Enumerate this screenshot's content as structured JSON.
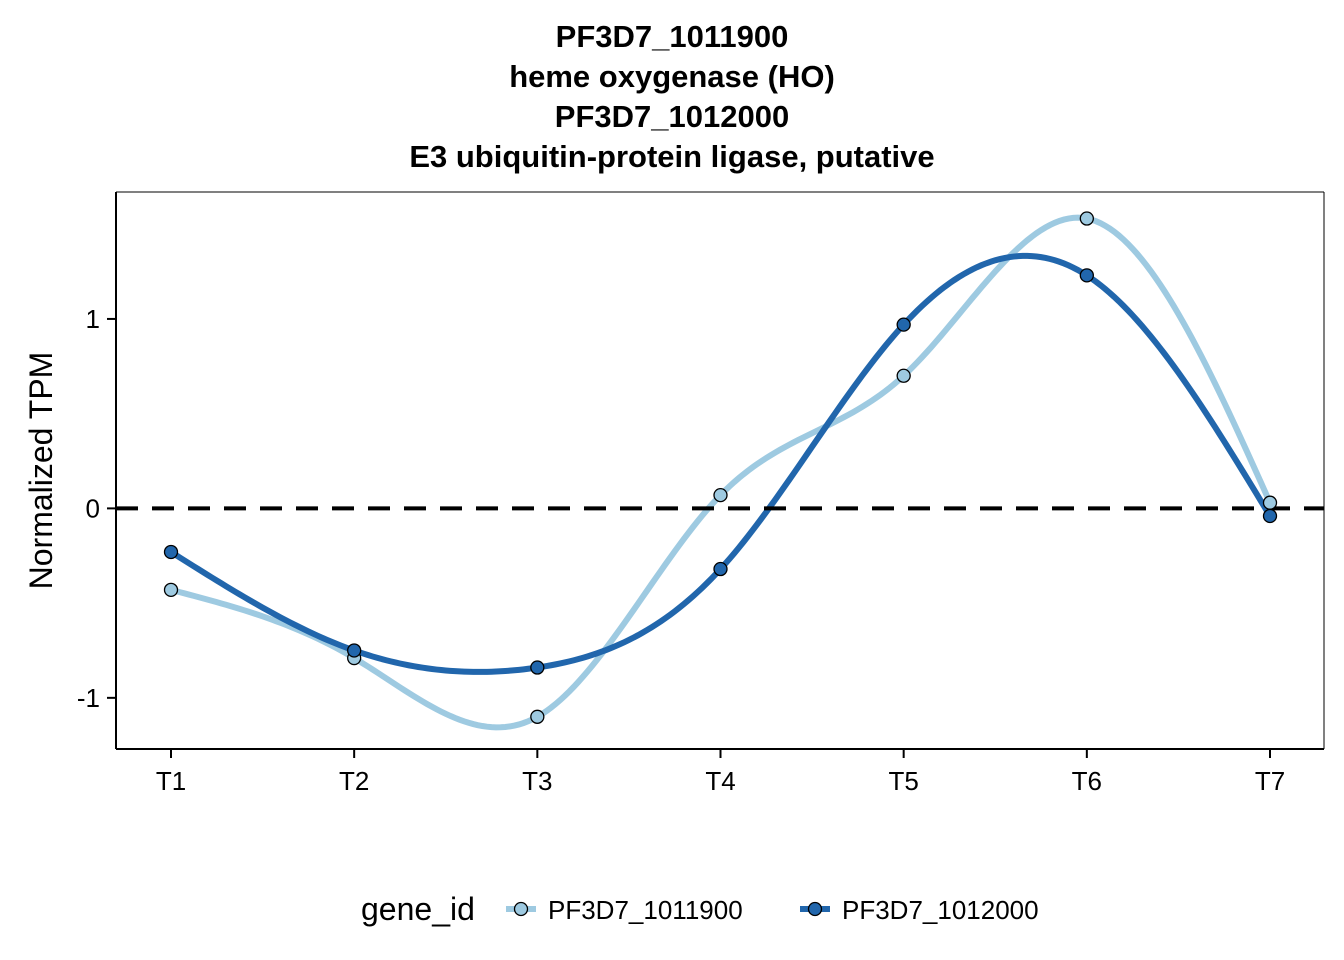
{
  "chart_data": {
    "type": "line",
    "title_lines": [
      "PF3D7_1011900",
      "heme oxygenase (HO)",
      "PF3D7_1012000",
      "E3 ubiquitin-protein ligase, putative"
    ],
    "xlabel": "",
    "ylabel": "Normalized TPM",
    "categories": [
      "T1",
      "T2",
      "T3",
      "T4",
      "T5",
      "T6",
      "T7"
    ],
    "yticks": [
      -1,
      0,
      1
    ],
    "ylim": [
      -1.27,
      1.67
    ],
    "reference_line": {
      "y": 0,
      "style": "dashed",
      "color": "#000000"
    },
    "legend": {
      "title": "gene_id",
      "position": "bottom"
    },
    "grid": false,
    "series": [
      {
        "name": "PF3D7_1011900",
        "color": "#9ecae1",
        "values": [
          -0.43,
          -0.79,
          -1.1,
          0.07,
          0.7,
          1.53,
          0.03
        ]
      },
      {
        "name": "PF3D7_1012000",
        "color": "#2166ac",
        "values": [
          -0.23,
          -0.75,
          -0.84,
          -0.32,
          0.97,
          1.23,
          -0.04
        ]
      }
    ]
  }
}
